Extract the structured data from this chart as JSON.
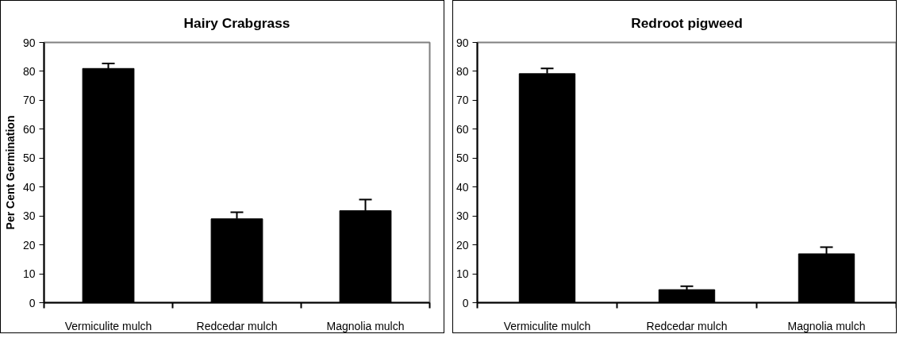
{
  "chart_data": [
    {
      "type": "bar",
      "title": "Hairy Crabgrass",
      "ylabel": "Per Cent Germination",
      "categories": [
        "Vermiculite mulch",
        "Redcedar mulch",
        "Magnolia mulch"
      ],
      "values": [
        81,
        29,
        31.8
      ],
      "errors": [
        [
          81,
          82.7
        ],
        [
          29,
          31.3
        ],
        [
          31.8,
          35.7
        ]
      ],
      "color": "#000000",
      "ylim": [
        0,
        90
      ],
      "yticks": [
        0,
        10,
        20,
        30,
        40,
        50,
        60,
        70,
        80,
        90
      ],
      "grid": false
    },
    {
      "type": "bar",
      "title": "Redroot pigweed",
      "categories": [
        "Vermiculite mulch",
        "Redcedar mulch",
        "Magnolia mulch"
      ],
      "values": [
        79.2,
        4.5,
        16.9
      ],
      "errors": [
        [
          79.2,
          81
        ],
        [
          4.5,
          5.7
        ],
        [
          16.9,
          19.2
        ]
      ],
      "color": "#000000",
      "ylim": [
        0,
        90
      ],
      "yticks": [
        0,
        10,
        20,
        30,
        40,
        50,
        60,
        70,
        80,
        90
      ],
      "grid": false
    }
  ]
}
